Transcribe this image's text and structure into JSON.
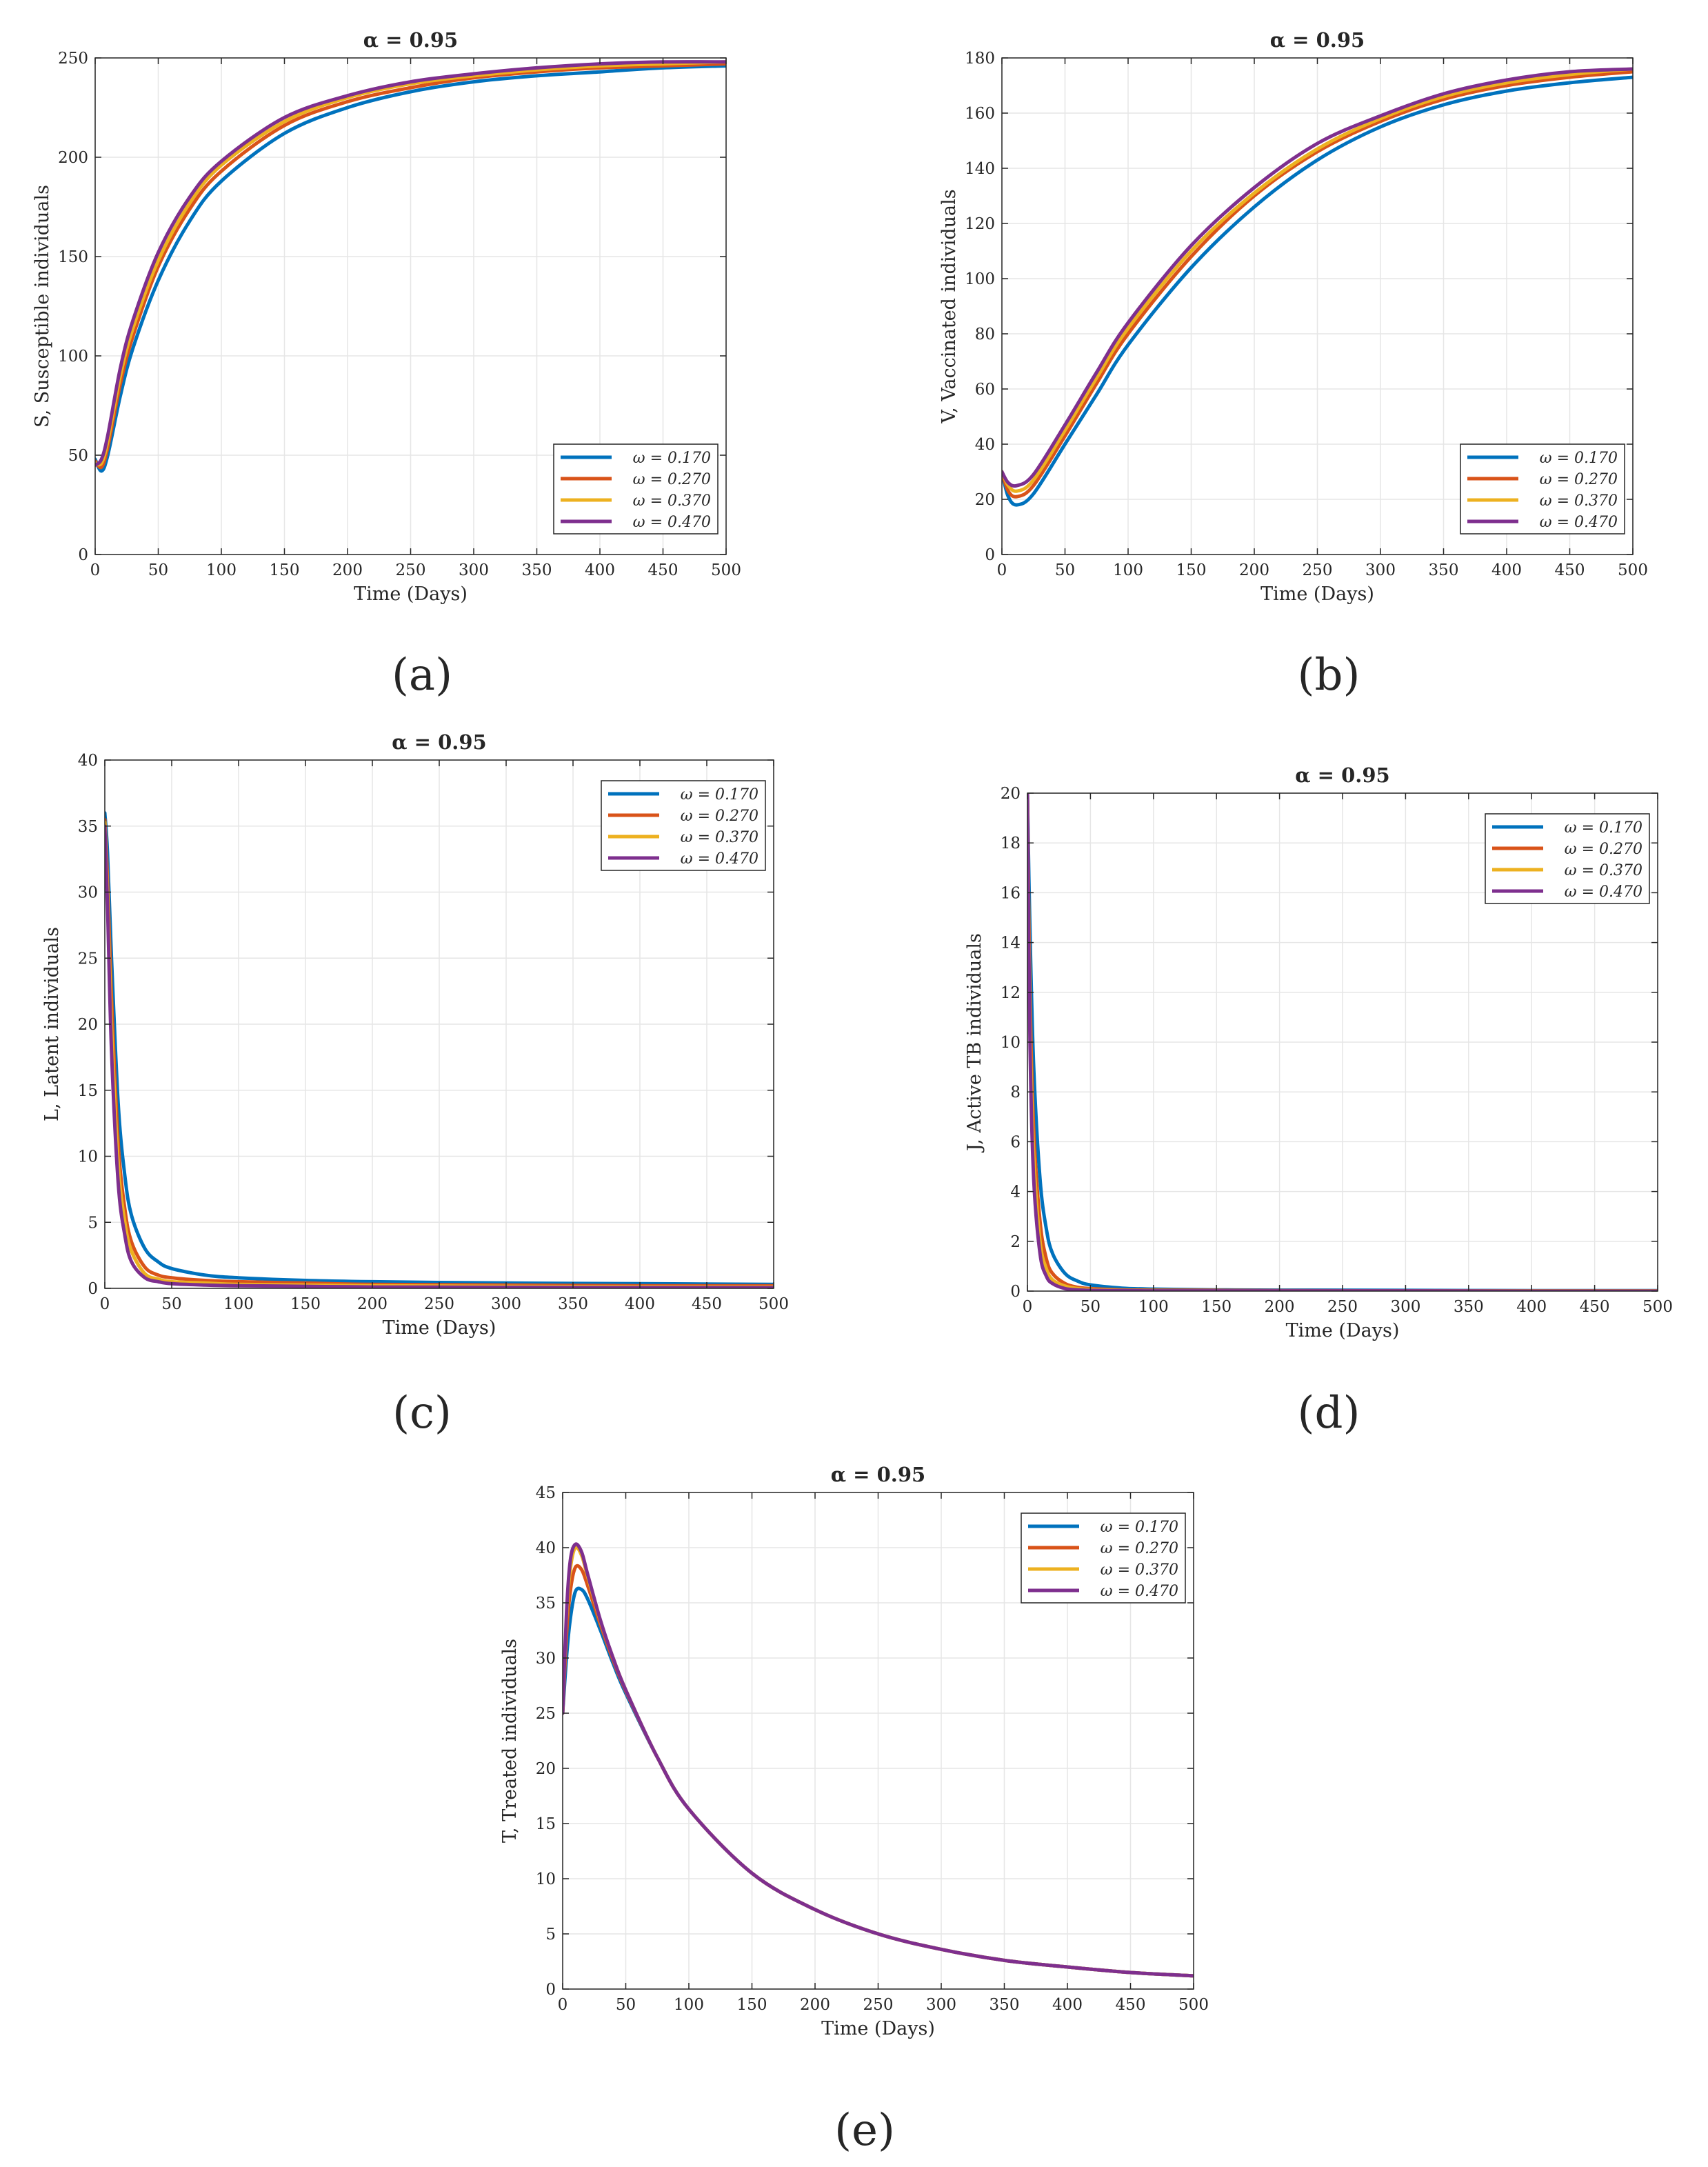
{
  "chart_data": [
    {
      "panel": "(a)",
      "type": "line",
      "title": "α = 0.95",
      "xlabel": "Time (Days)",
      "ylabel": "S, Susceptible individuals",
      "xlim": [
        0,
        500
      ],
      "ylim": [
        0,
        250
      ],
      "xticks": [
        0,
        50,
        100,
        150,
        200,
        250,
        300,
        350,
        400,
        450,
        500
      ],
      "yticks": [
        0,
        50,
        100,
        150,
        200,
        250
      ],
      "grid": true,
      "legend_location": "bottom-right",
      "x": [
        0,
        5,
        10,
        20,
        30,
        50,
        75,
        100,
        150,
        200,
        250,
        300,
        350,
        400,
        450,
        500
      ],
      "series": [
        {
          "name": "ω = 0.170",
          "values": [
            48,
            42,
            50,
            80,
            104,
            138,
            168,
            188,
            212,
            225,
            233,
            238,
            241,
            243,
            245,
            246
          ]
        },
        {
          "name": "ω = 0.270",
          "values": [
            47,
            44,
            54,
            86,
            110,
            145,
            174,
            193,
            216,
            228,
            235,
            240,
            243,
            245,
            246,
            247
          ]
        },
        {
          "name": "ω = 0.370",
          "values": [
            46,
            46,
            57,
            90,
            114,
            148,
            177,
            196,
            218,
            230,
            237,
            241,
            244,
            246,
            247,
            248
          ]
        },
        {
          "name": "ω = 0.470",
          "values": [
            45,
            48,
            60,
            94,
            118,
            152,
            180,
            198,
            220,
            231,
            238,
            242,
            245,
            247,
            248,
            248
          ]
        }
      ]
    },
    {
      "panel": "(b)",
      "type": "line",
      "title": "α = 0.95",
      "xlabel": "Time (Days)",
      "ylabel": "V, Vaccinated individuals",
      "xlim": [
        0,
        500
      ],
      "ylim": [
        0,
        180
      ],
      "xticks": [
        0,
        50,
        100,
        150,
        200,
        250,
        300,
        350,
        400,
        450,
        500
      ],
      "yticks": [
        0,
        20,
        40,
        60,
        80,
        100,
        120,
        140,
        160,
        180
      ],
      "grid": true,
      "legend_location": "bottom-right",
      "x": [
        0,
        5,
        12,
        25,
        50,
        75,
        100,
        150,
        200,
        250,
        300,
        350,
        400,
        450,
        500
      ],
      "series": [
        {
          "name": "ω = 0.170",
          "values": [
            30,
            21,
            18,
            22,
            40,
            58,
            76,
            104,
            126,
            143,
            155,
            163,
            168,
            171,
            173
          ]
        },
        {
          "name": "ω = 0.270",
          "values": [
            30,
            23,
            21,
            25,
            43,
            62,
            80,
            108,
            130,
            146,
            157,
            165,
            170,
            173,
            175
          ]
        },
        {
          "name": "ω = 0.370",
          "values": [
            30,
            25,
            23,
            27,
            45,
            64,
            82,
            110,
            131,
            147,
            158,
            166,
            171,
            174,
            176
          ]
        },
        {
          "name": "ω = 0.470",
          "values": [
            30,
            26,
            25,
            29,
            47,
            66,
            84,
            112,
            133,
            149,
            159,
            167,
            172,
            175,
            176
          ]
        }
      ]
    },
    {
      "panel": "(c)",
      "type": "line",
      "title": "α = 0.95",
      "xlabel": "Time (Days)",
      "ylabel": "L, Latent individuals",
      "xlim": [
        0,
        500
      ],
      "ylim": [
        0,
        40
      ],
      "xticks": [
        0,
        50,
        100,
        150,
        200,
        250,
        300,
        350,
        400,
        450,
        500
      ],
      "yticks": [
        0,
        5,
        10,
        15,
        20,
        25,
        30,
        35,
        40
      ],
      "grid": true,
      "legend_location": "top-right",
      "x": [
        0,
        2,
        5,
        10,
        15,
        20,
        30,
        40,
        50,
        75,
        100,
        150,
        200,
        300,
        400,
        500
      ],
      "series": [
        {
          "name": "ω = 0.170",
          "values": [
            36,
            33,
            25,
            14,
            8.5,
            5.5,
            3.0,
            2.0,
            1.5,
            1.0,
            0.8,
            0.6,
            0.5,
            0.4,
            0.35,
            0.3
          ]
        },
        {
          "name": "ω = 0.270",
          "values": [
            35.5,
            31,
            22,
            11,
            6.0,
            3.5,
            1.6,
            1.0,
            0.8,
            0.6,
            0.5,
            0.4,
            0.3,
            0.25,
            0.2,
            0.2
          ]
        },
        {
          "name": "ω = 0.370",
          "values": [
            35.3,
            30,
            20,
            9.5,
            5.0,
            2.8,
            1.1,
            0.7,
            0.5,
            0.4,
            0.3,
            0.25,
            0.2,
            0.15,
            0.12,
            0.1
          ]
        },
        {
          "name": "ω = 0.470",
          "values": [
            35,
            29,
            18,
            8.0,
            4.0,
            2.0,
            0.8,
            0.5,
            0.35,
            0.25,
            0.2,
            0.15,
            0.1,
            0.08,
            0.06,
            0.05
          ]
        }
      ]
    },
    {
      "panel": "(d)",
      "type": "line",
      "title": "α = 0.95",
      "xlabel": "Time (Days)",
      "ylabel": "J, Active TB individuals",
      "xlim": [
        0,
        500
      ],
      "ylim": [
        0,
        20
      ],
      "xticks": [
        0,
        50,
        100,
        150,
        200,
        250,
        300,
        350,
        400,
        450,
        500
      ],
      "yticks": [
        0,
        2,
        4,
        6,
        8,
        10,
        12,
        14,
        16,
        18,
        20
      ],
      "grid": true,
      "legend_location": "top-right",
      "x": [
        0,
        2,
        5,
        10,
        15,
        20,
        30,
        40,
        50,
        75,
        100,
        150,
        200,
        300,
        400,
        500
      ],
      "series": [
        {
          "name": "ω = 0.170",
          "values": [
            20,
            14.5,
            9,
            4.5,
            2.5,
            1.5,
            0.7,
            0.4,
            0.25,
            0.12,
            0.08,
            0.05,
            0.04,
            0.03,
            0.02,
            0.02
          ]
        },
        {
          "name": "ω = 0.270",
          "values": [
            20,
            12,
            6.5,
            2.8,
            1.3,
            0.7,
            0.3,
            0.15,
            0.1,
            0.05,
            0.04,
            0.03,
            0.02,
            0.01,
            0.01,
            0.01
          ]
        },
        {
          "name": "ω = 0.370",
          "values": [
            20,
            11,
            5.5,
            2.0,
            0.9,
            0.45,
            0.2,
            0.1,
            0.06,
            0.03,
            0.02,
            0.01,
            0.01,
            0.01,
            0.01,
            0.01
          ]
        },
        {
          "name": "ω = 0.470",
          "values": [
            20,
            10,
            4.5,
            1.5,
            0.6,
            0.3,
            0.1,
            0.05,
            0.03,
            0.02,
            0.01,
            0.01,
            0.01,
            0.01,
            0.0,
            0.0
          ]
        }
      ]
    },
    {
      "panel": "(e)",
      "type": "line",
      "title": "α = 0.95",
      "xlabel": "Time (Days)",
      "ylabel": "T, Treated individuals",
      "xlim": [
        0,
        500
      ],
      "ylim": [
        0,
        45
      ],
      "xticks": [
        0,
        50,
        100,
        150,
        200,
        250,
        300,
        350,
        400,
        450,
        500
      ],
      "yticks": [
        0,
        5,
        10,
        15,
        20,
        25,
        30,
        35,
        40,
        45
      ],
      "grid": true,
      "legend_location": "top-right",
      "x": [
        0,
        3,
        6,
        10,
        15,
        20,
        30,
        40,
        50,
        75,
        100,
        150,
        200,
        250,
        300,
        350,
        400,
        450,
        500
      ],
      "series": [
        {
          "name": "ω = 0.170",
          "values": [
            25,
            30,
            33.5,
            36,
            36.2,
            35.3,
            32.5,
            29.5,
            26.8,
            21,
            16.3,
            10.5,
            7.2,
            5.0,
            3.6,
            2.6,
            2.0,
            1.5,
            1.2
          ]
        },
        {
          "name": "ω = 0.270",
          "values": [
            25,
            32,
            36,
            38.2,
            38.0,
            36.5,
            33.0,
            29.8,
            27.0,
            21,
            16.3,
            10.5,
            7.2,
            5.0,
            3.6,
            2.6,
            2.0,
            1.5,
            1.2
          ]
        },
        {
          "name": "ω = 0.370",
          "values": [
            25,
            33.5,
            38,
            40,
            39.3,
            37.3,
            33.3,
            30.0,
            27.1,
            21,
            16.3,
            10.5,
            7.2,
            5.0,
            3.6,
            2.6,
            2.0,
            1.5,
            1.2
          ]
        },
        {
          "name": "ω = 0.470",
          "values": [
            25,
            34,
            38.8,
            40.3,
            39.6,
            37.5,
            33.4,
            30.0,
            27.1,
            21,
            16.3,
            10.5,
            7.2,
            5.0,
            3.6,
            2.6,
            2.0,
            1.5,
            1.2
          ]
        }
      ]
    }
  ],
  "colors": [
    "#0072BD",
    "#D95319",
    "#EDB120",
    "#7E2F8E"
  ]
}
